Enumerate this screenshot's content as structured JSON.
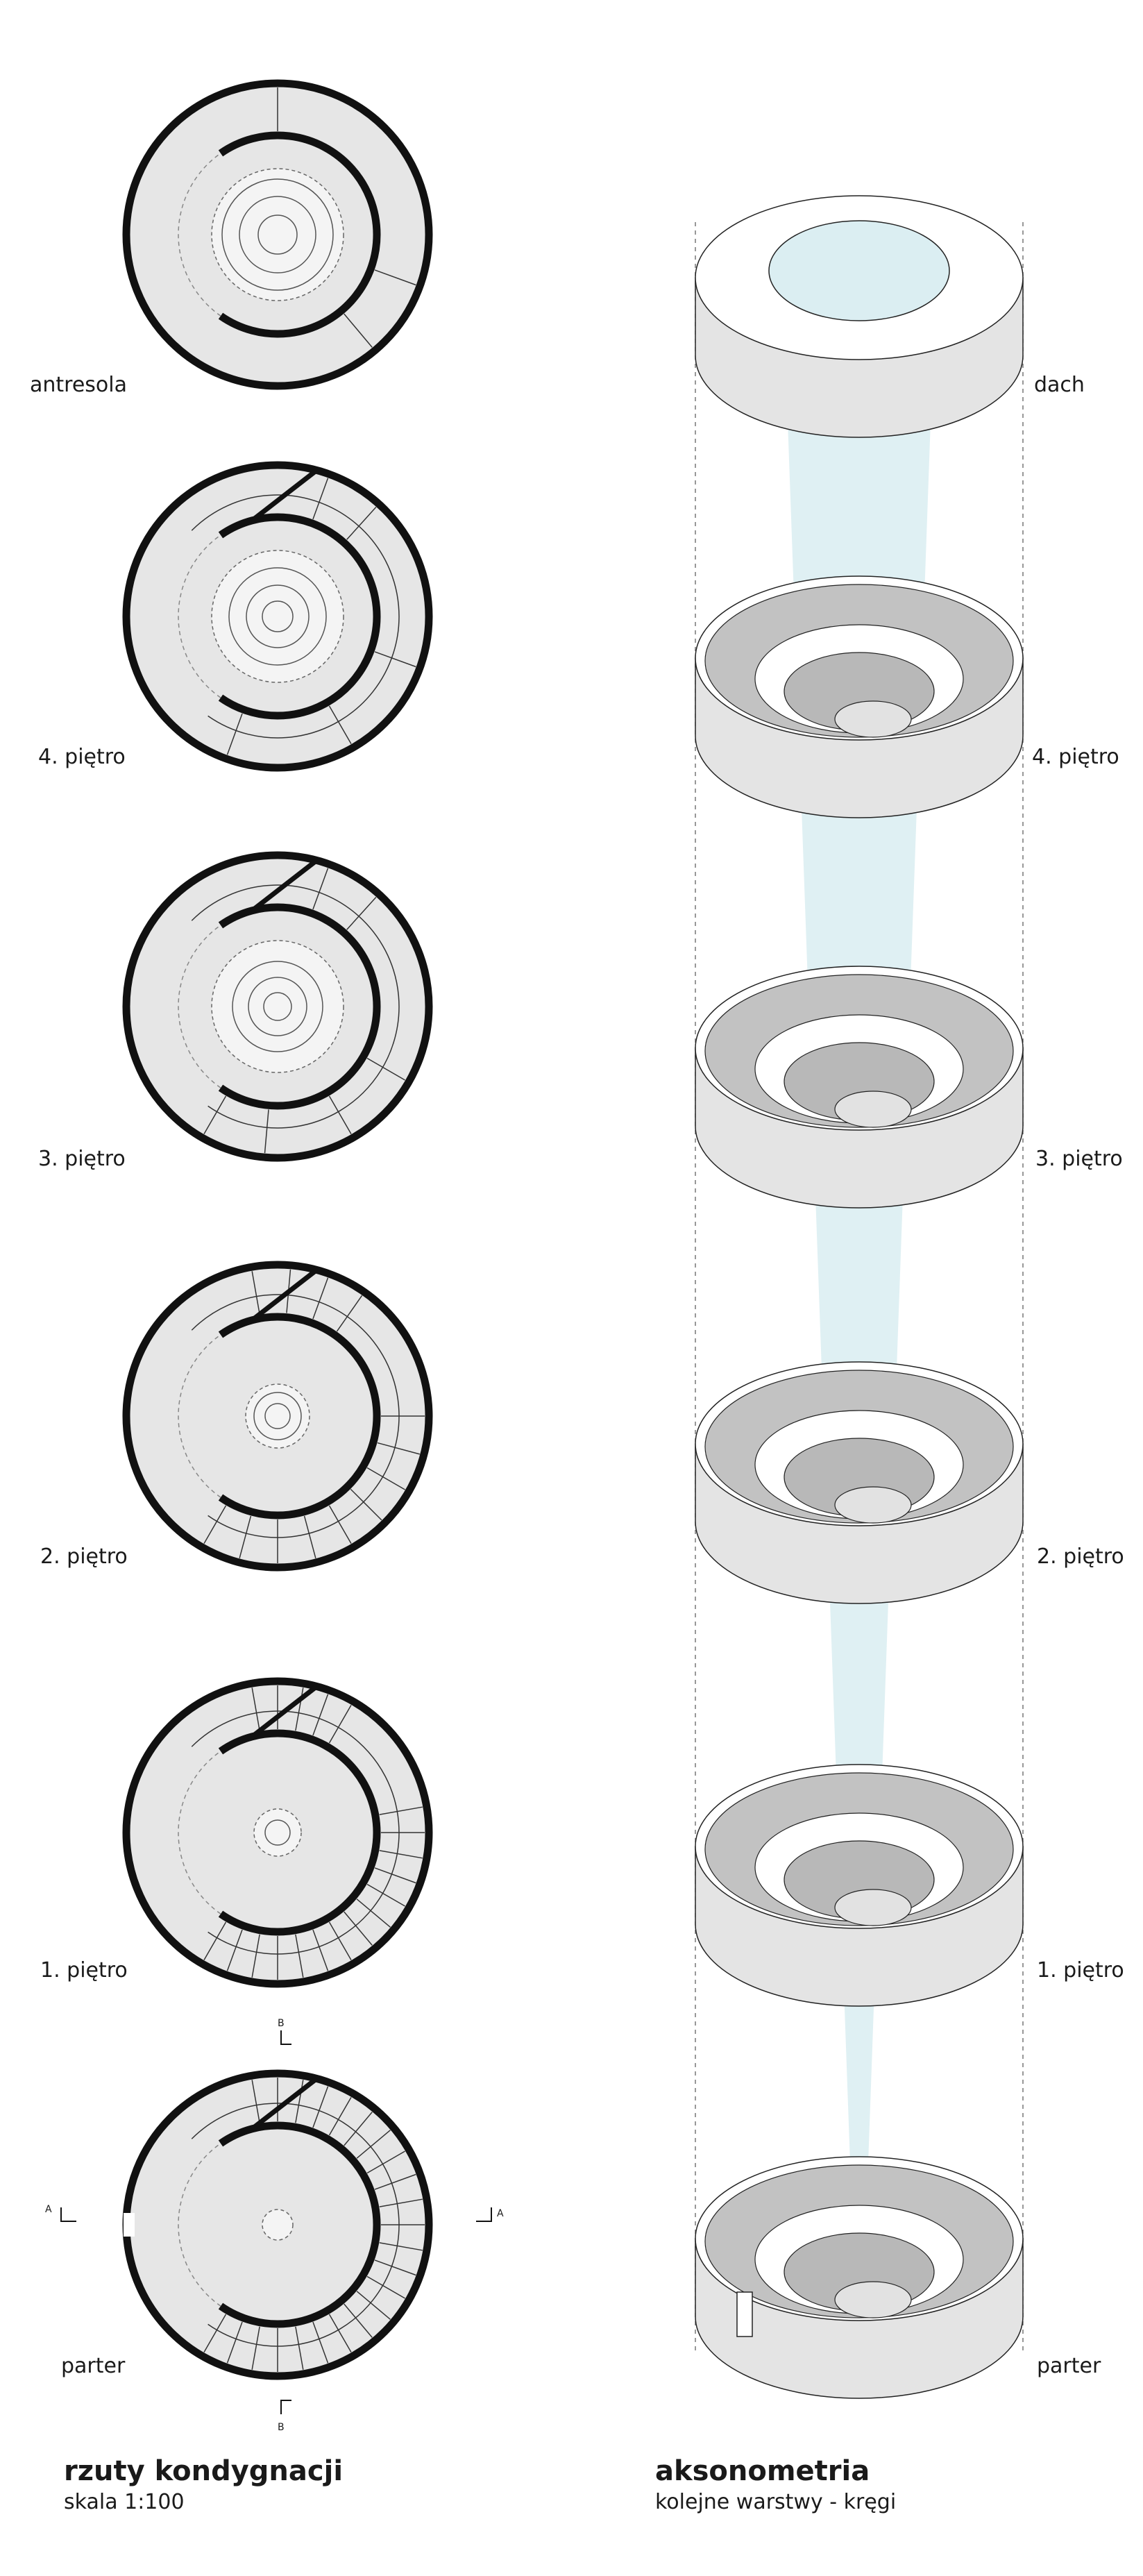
{
  "floor_labels": {
    "antresola": "antresola",
    "p4": "4. piętro",
    "p3": "3. piętro",
    "p2": "2. piętro",
    "p1": "1. piętro",
    "parter": "parter"
  },
  "axo_labels": {
    "dach": "dach",
    "p4": "4. piętro",
    "p3": "3. piętro",
    "p2": "2. piętro",
    "p1": "1. piętro",
    "parter": "parter"
  },
  "section_marks": {
    "a_left": "A",
    "a_right": "A",
    "b_top": "B",
    "b_bottom": "B"
  },
  "captions": {
    "plans_title": "rzuty kondygnacji",
    "plans_scale": "skala 1:100",
    "axo_title": "aksonometria",
    "axo_subtitle": "kolejne warstwy - kręgi"
  },
  "colors": {
    "wall": "#111111",
    "floor_fill": "#e6e6e6",
    "axo_outer": "#e4e4e4",
    "axo_inner": "#c2c2c2",
    "light_shaft": "#dbeef2"
  }
}
